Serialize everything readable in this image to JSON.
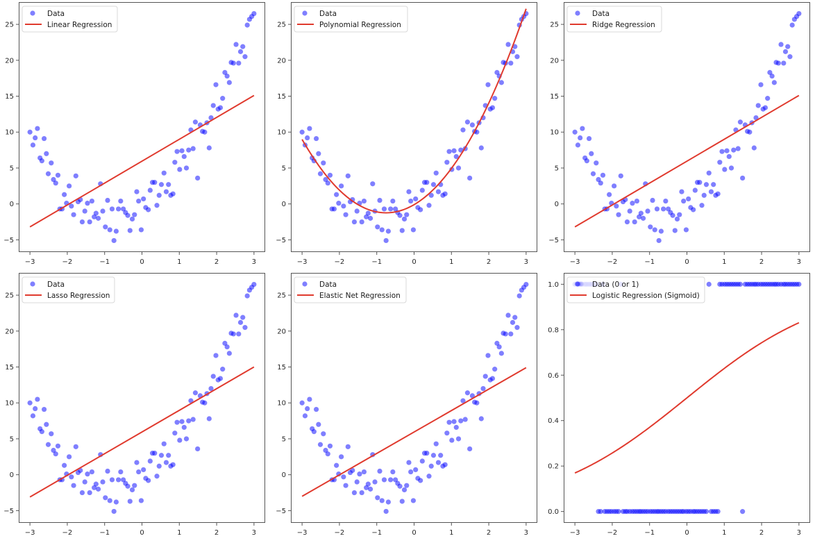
{
  "colors": {
    "points": "#0000ff",
    "line": "#e03a2e",
    "axis": "#555555"
  },
  "chart_data": [
    {
      "type": "scatter",
      "title": "",
      "xlabel": "",
      "ylabel": "",
      "xlim": [
        -3.3,
        3.3
      ],
      "ylim": [
        -6.7,
        28.1
      ],
      "xticks": [
        "-3",
        "-2",
        "-1",
        "0",
        "1",
        "2",
        "3"
      ],
      "yticks": [
        "-5",
        "0",
        "5",
        "10",
        "15",
        "20",
        "25"
      ],
      "legend": [
        "Data",
        "Linear Regression"
      ],
      "legend_position": "top-left",
      "fit": {
        "kind": "line",
        "x": [
          -3,
          3
        ],
        "y": [
          -3.2,
          15.1
        ]
      }
    },
    {
      "type": "scatter",
      "xlim": [
        -3.3,
        3.3
      ],
      "ylim": [
        -6.7,
        28.1
      ],
      "xticks": [
        "-3",
        "-2",
        "-1",
        "0",
        "1",
        "2",
        "3"
      ],
      "yticks": [
        "-5",
        "0",
        "5",
        "10",
        "15",
        "20",
        "25"
      ],
      "legend": [
        "Data",
        "Polynomial Regression"
      ],
      "legend_position": "top-left",
      "fit": {
        "kind": "poly",
        "coef": [
          -0.1,
          3.03,
          2.02
        ],
        "x_range": [
          -3,
          3
        ]
      }
    },
    {
      "type": "scatter",
      "xlim": [
        -3.3,
        3.3
      ],
      "ylim": [
        -6.7,
        28.1
      ],
      "xticks": [
        "-3",
        "-2",
        "-1",
        "0",
        "1",
        "2",
        "3"
      ],
      "yticks": [
        "-5",
        "0",
        "5",
        "10",
        "15",
        "20",
        "25"
      ],
      "legend": [
        "Data",
        "Ridge Regression"
      ],
      "legend_position": "top-left",
      "fit": {
        "kind": "line",
        "x": [
          -3,
          3
        ],
        "y": [
          -3.2,
          15.1
        ]
      }
    },
    {
      "type": "scatter",
      "xlim": [
        -3.3,
        3.3
      ],
      "ylim": [
        -6.7,
        28.1
      ],
      "xticks": [
        "-3",
        "-2",
        "-1",
        "0",
        "1",
        "2",
        "3"
      ],
      "yticks": [
        "-5",
        "0",
        "5",
        "10",
        "15",
        "20",
        "25"
      ],
      "legend": [
        "Data",
        "Lasso Regression"
      ],
      "legend_position": "top-left",
      "fit": {
        "kind": "line",
        "x": [
          -3,
          3
        ],
        "y": [
          -3.1,
          15.0
        ]
      }
    },
    {
      "type": "scatter",
      "xlim": [
        -3.3,
        3.3
      ],
      "ylim": [
        -6.7,
        28.1
      ],
      "xticks": [
        "-3",
        "-2",
        "-1",
        "0",
        "1",
        "2",
        "3"
      ],
      "yticks": [
        "-5",
        "0",
        "5",
        "10",
        "15",
        "20",
        "25"
      ],
      "legend": [
        "Data",
        "Elastic Net Regression"
      ],
      "legend_position": "top-left",
      "fit": {
        "kind": "line",
        "x": [
          -3,
          3
        ],
        "y": [
          -3.0,
          14.9
        ]
      }
    },
    {
      "type": "scatter",
      "xlim": [
        -3.3,
        3.3
      ],
      "ylim": [
        -0.05,
        1.05
      ],
      "xticks": [
        "-3",
        "-2",
        "-1",
        "0",
        "1",
        "2",
        "3"
      ],
      "yticks": [
        "0.0",
        "0.2",
        "0.4",
        "0.6",
        "0.8",
        "1.0"
      ],
      "legend": [
        "Data (0 or 1)",
        "Logistic Regression (Sigmoid)"
      ],
      "legend_position": "top-left",
      "fit": {
        "kind": "sigmoid",
        "slope": 0.53,
        "intercept": 0.0,
        "x_range": [
          -3,
          3
        ]
      },
      "class_threshold": 3.85
    }
  ],
  "scatter_data": {
    "x": [
      -3.0,
      -2.92,
      -2.86,
      -2.8,
      -2.73,
      -2.68,
      -2.62,
      -2.56,
      -2.51,
      -2.43,
      -2.37,
      -2.31,
      -2.25,
      -2.2,
      -2.14,
      -2.08,
      -2.02,
      -1.95,
      -1.89,
      -1.83,
      -1.77,
      -1.71,
      -1.65,
      -1.6,
      -1.53,
      -1.46,
      -1.4,
      -1.34,
      -1.28,
      -1.23,
      -1.17,
      -1.11,
      -1.05,
      -0.98,
      -0.92,
      -0.86,
      -0.8,
      -0.75,
      -0.69,
      -0.63,
      -0.57,
      -0.5,
      -0.44,
      -0.38,
      -0.32,
      -0.26,
      -0.2,
      -0.14,
      -0.09,
      -0.02,
      0.04,
      0.1,
      0.17,
      0.22,
      0.28,
      0.34,
      0.4,
      0.46,
      0.52,
      0.59,
      0.65,
      0.71,
      0.77,
      0.83,
      0.88,
      0.94,
      1.01,
      1.07,
      1.13,
      1.19,
      1.25,
      1.31,
      1.37,
      1.43,
      1.49,
      1.56,
      1.62,
      1.68,
      1.74,
      1.8,
      1.85,
      1.91,
      1.98,
      2.04,
      2.1,
      2.16,
      2.22,
      2.28,
      2.34,
      2.39,
      2.45,
      2.52,
      2.59,
      2.64,
      2.7,
      2.76,
      2.82,
      2.88,
      2.94,
      3.0
    ],
    "y": [
      10.0,
      8.2,
      9.2,
      10.5,
      6.4,
      6.0,
      9.1,
      7.0,
      4.2,
      5.7,
      3.4,
      2.9,
      4.0,
      -0.7,
      -0.7,
      1.3,
      0.1,
      2.5,
      -0.3,
      -1.5,
      3.9,
      0.3,
      0.6,
      -2.5,
      -1.0,
      0.1,
      -2.5,
      0.4,
      -1.8,
      -1.3,
      -2.0,
      2.8,
      -1.0,
      -3.2,
      0.5,
      -3.6,
      -0.7,
      -5.1,
      -3.8,
      -0.7,
      0.4,
      -0.7,
      -1.2,
      -1.6,
      -3.7,
      -2.1,
      -1.5,
      1.7,
      0.4,
      -3.6,
      0.7,
      -0.5,
      -0.8,
      1.9,
      3.0,
      3.0,
      -0.2,
      1.2,
      2.7,
      4.3,
      1.7,
      2.7,
      1.2,
      1.4,
      5.8,
      7.3,
      4.8,
      7.4,
      6.6,
      5.0,
      7.5,
      10.3,
      7.7,
      11.4,
      3.6,
      11.0,
      10.1,
      10.0,
      11.3,
      7.8,
      12.0,
      13.7,
      16.6,
      13.2,
      13.4,
      14.7,
      18.3,
      17.8,
      16.9,
      19.7,
      19.6,
      22.2,
      19.6,
      21.2,
      21.9,
      20.5,
      24.9,
      25.7,
      26.1,
      26.5
    ]
  }
}
